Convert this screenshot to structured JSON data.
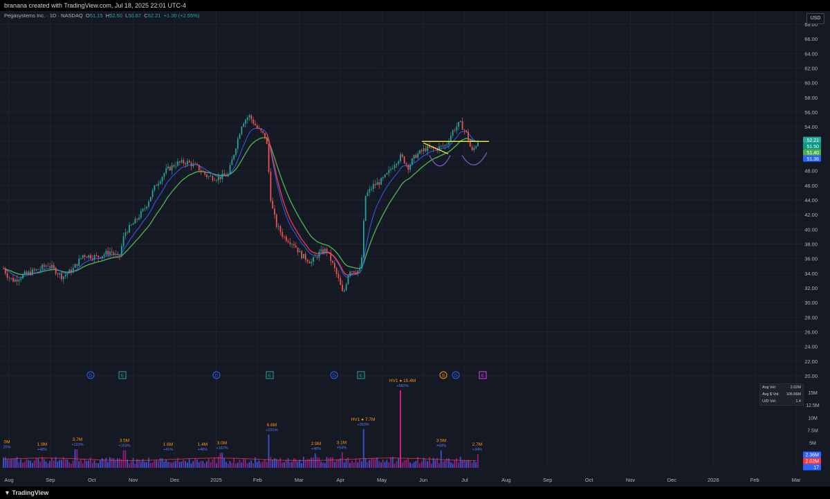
{
  "topbar": {
    "text": "branana created with TradingView.com, Jul 18, 2025 22:01 UTC-4"
  },
  "legend": {
    "symbol": "Pegasystems Inc. · 1D · NASDAQ",
    "o_label": "O",
    "o": "51.15",
    "h_label": "H",
    "h": "52.50",
    "l_label": "L",
    "l": "50.87",
    "c_label": "C",
    "c": "52.21",
    "change": "+1.30 (+2.55%)"
  },
  "currency_button": "USD",
  "colors": {
    "bg": "#151924",
    "up": "#26a69a",
    "down": "#ef5350",
    "ema_fast": "#2962ff",
    "ema_slow": "#4caf50",
    "red_ma": "#f23645",
    "yellow": "#ffeb3b",
    "arc": "#7e57c2",
    "pink": "#e91e8c"
  },
  "price_axis": [
    "68.00",
    "66.00",
    "64.00",
    "62.00",
    "60.00",
    "58.00",
    "56.00",
    "54.00",
    "52.00",
    "50.00",
    "48.00",
    "46.00",
    "44.00",
    "42.00",
    "40.00",
    "38.00",
    "36.00",
    "34.00",
    "32.00",
    "30.00",
    "28.00",
    "26.00",
    "24.00",
    "22.00",
    "20.00"
  ],
  "price_tags": [
    {
      "value": "52.21",
      "color": "#26a69a"
    },
    {
      "value": "51.50",
      "color": "#089981"
    },
    {
      "value": "51.40",
      "color": "#4caf50"
    },
    {
      "value": "51.36",
      "color": "#2962ff"
    }
  ],
  "volume_axis": [
    "15M",
    "12.5M",
    "10M",
    "7.5M",
    "5M"
  ],
  "volume_tags": [
    {
      "value": "2.36M",
      "color": "#2962ff"
    },
    {
      "value": "2.02M",
      "color": "#f23645"
    },
    {
      "value": "17",
      "color": "#2962ff"
    }
  ],
  "volume_stats": [
    {
      "label": "Avg Vol:",
      "value": "2.02M"
    },
    {
      "label": "Avg $ Vol:",
      "value": "105.56M"
    },
    {
      "label": "U/D Vol:",
      "value": "1.4"
    }
  ],
  "time_axis": [
    "Aug",
    "Sep",
    "Oct",
    "Nov",
    "Dec",
    "2025",
    "Feb",
    "Mar",
    "Apr",
    "May",
    "Jun",
    "Jul",
    "Aug",
    "Sep",
    "Oct",
    "Nov",
    "Dec",
    "2026",
    "Feb",
    "Mar"
  ],
  "event_markers": [
    {
      "letter": "D",
      "kind": "dividend"
    },
    {
      "letter": "E",
      "kind": "earnings"
    },
    {
      "letter": "D",
      "kind": "dividend"
    },
    {
      "letter": "E",
      "kind": "earnings"
    },
    {
      "letter": "D",
      "kind": "dividend"
    },
    {
      "letter": "E",
      "kind": "earnings"
    },
    {
      "letter": "S",
      "kind": "split"
    },
    {
      "letter": "D",
      "kind": "dividend"
    },
    {
      "letter": "E",
      "kind": "earnings-upcoming"
    }
  ],
  "volume_labels": [
    {
      "vol": "0M",
      "pct": "25%"
    },
    {
      "vol": "1.9M",
      "pct": "+48%"
    },
    {
      "vol": "3.7M",
      "pct": "+123%"
    },
    {
      "vol": "3.5M",
      "pct": "+163%"
    },
    {
      "vol": "1.6M",
      "pct": "+41%"
    },
    {
      "vol": "1.4M",
      "pct": "+46%"
    },
    {
      "vol": "3.0M",
      "pct": "+167%"
    },
    {
      "vol": "6.6M",
      "pct": "+231%"
    },
    {
      "vol": "2.9M",
      "pct": "+48%"
    },
    {
      "vol": "3.1M",
      "pct": "+54%"
    },
    {
      "vol": "HV1 ● 7.7M",
      "pct": "+263%"
    },
    {
      "vol": "HV1 ● 15.4M",
      "pct": "+582%"
    },
    {
      "vol": "3.5M",
      "pct": "+68%"
    },
    {
      "vol": "2.7M",
      "pct": "+34%"
    }
  ],
  "footer": {
    "logo": "TradingView"
  }
}
